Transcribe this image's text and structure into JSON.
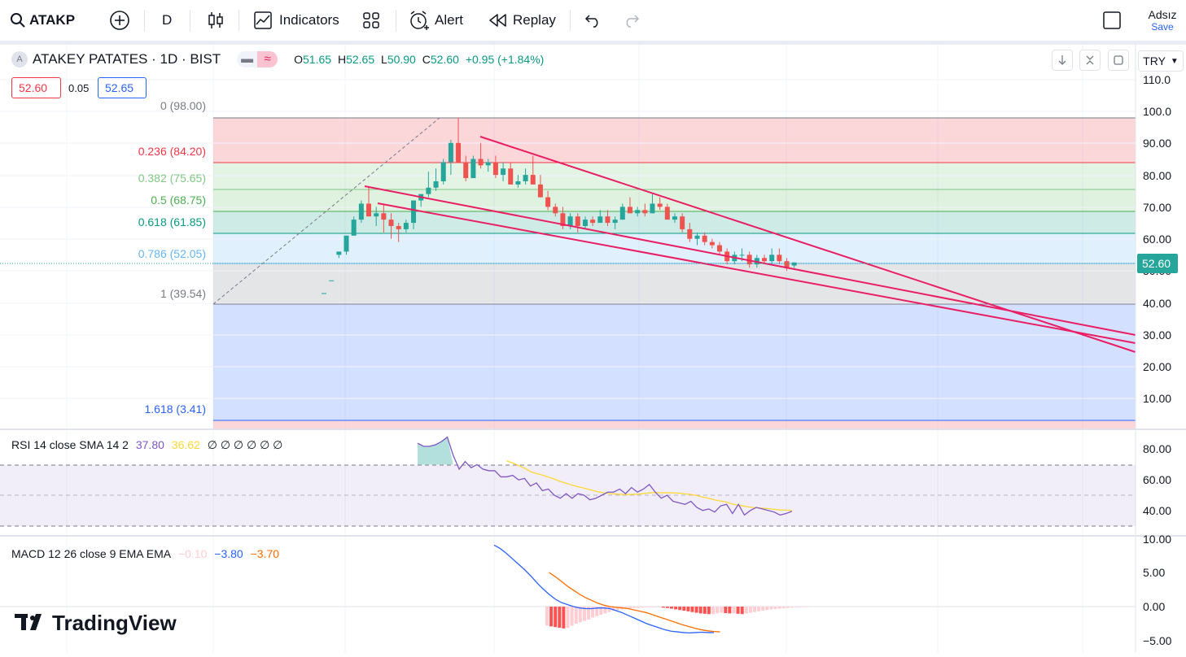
{
  "toolbar": {
    "symbol": "ATAKP",
    "interval": "D",
    "indicators_label": "Indicators",
    "alert_label": "Alert",
    "replay_label": "Replay",
    "layout_name": "Adsız",
    "save_label": "Save"
  },
  "legend": {
    "title": "ATAKEY PATATES · 1D · BIST",
    "o_label": "O",
    "o_value": "51.65",
    "h_label": "H",
    "h_value": "52.65",
    "l_label": "L",
    "l_value": "50.90",
    "c_label": "C",
    "c_value": "52.60",
    "change": "+0.95 (+1.84%)",
    "sell_price": "52.60",
    "spread": "0.05",
    "buy_price": "52.65"
  },
  "currency": "TRY",
  "current_price_label": "52.60",
  "price_axis": [
    "110.0",
    "100.0",
    "90.00",
    "80.00",
    "70.00",
    "60.00",
    "50.00",
    "40.00",
    "30.00",
    "20.00",
    "10.00"
  ],
  "fib_levels": [
    {
      "label": "0 (98.00)",
      "color": "#787b86"
    },
    {
      "label": "0.236 (84.20)",
      "color": "#f23645"
    },
    {
      "label": "0.382 (75.65)",
      "color": "#81c784"
    },
    {
      "label": "0.5 (68.75)",
      "color": "#4caf50"
    },
    {
      "label": "0.618 (61.85)",
      "color": "#089981"
    },
    {
      "label": "0.786 (52.05)",
      "color": "#64b5f6"
    },
    {
      "label": "1 (39.54)",
      "color": "#787b86"
    },
    {
      "label": "1.618 (3.41)",
      "color": "#2962ff"
    }
  ],
  "rsi": {
    "title": "RSI 14 close SMA 14 2",
    "value": "37.80",
    "sma": "36.62",
    "placeholders": "∅ ∅ ∅ ∅ ∅ ∅",
    "axis": [
      "80.00",
      "60.00",
      "40.00"
    ]
  },
  "macd": {
    "title": "MACD 12 26 close 9 EMA EMA",
    "hist": "−0.10",
    "macd": "−3.80",
    "signal": "−3.70",
    "axis": [
      "10.00",
      "5.00",
      "0.00",
      "−5.00"
    ]
  },
  "logo_text": "TradingView",
  "colors": {
    "up": "#26a69a",
    "down": "#ef5350",
    "trend": "#e91e63",
    "rsi": "#7e57c2",
    "rsi_sma": "#fdd835",
    "macd": "#2962ff",
    "signal": "#ff6d00"
  }
}
